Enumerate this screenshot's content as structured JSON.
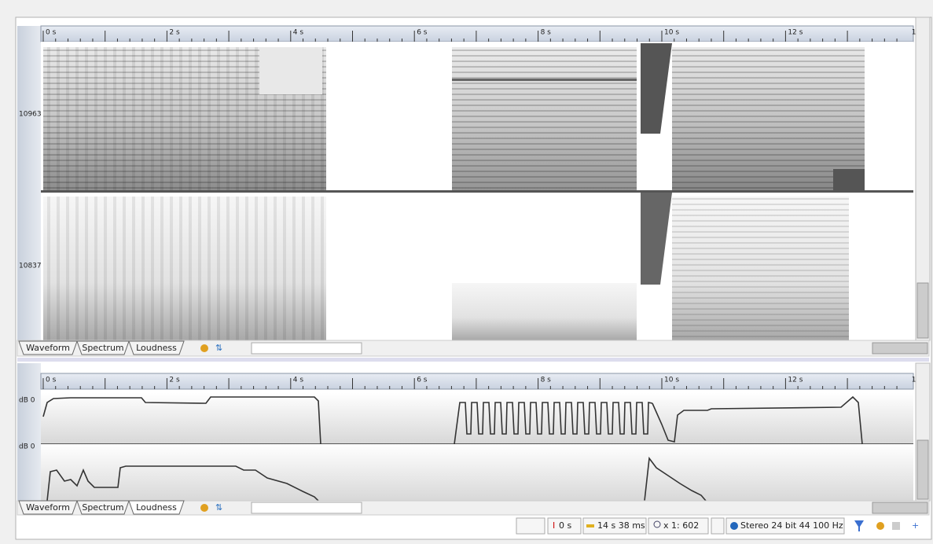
{
  "ruler": {
    "labels": [
      "0 s",
      "2 s",
      "4 s",
      "6 s",
      "8 s",
      "10 s",
      "12 s",
      "1"
    ]
  },
  "spectrum": {
    "channels": [
      {
        "label": "10963"
      },
      {
        "label": "10837"
      }
    ]
  },
  "loudness": {
    "channels": [
      {
        "label": "dB 0"
      },
      {
        "label": "dB 0"
      }
    ]
  },
  "tabs": {
    "top": [
      "Waveform",
      "Spectrum",
      "Loudness"
    ],
    "bottom": [
      "Waveform",
      "Spectrum",
      "Loudness"
    ]
  },
  "status": {
    "cursor": "0 s",
    "length": "14 s 38 ms",
    "zoom": "x 1: 602",
    "format": "Stereo 24 bit 44 100 Hz"
  }
}
